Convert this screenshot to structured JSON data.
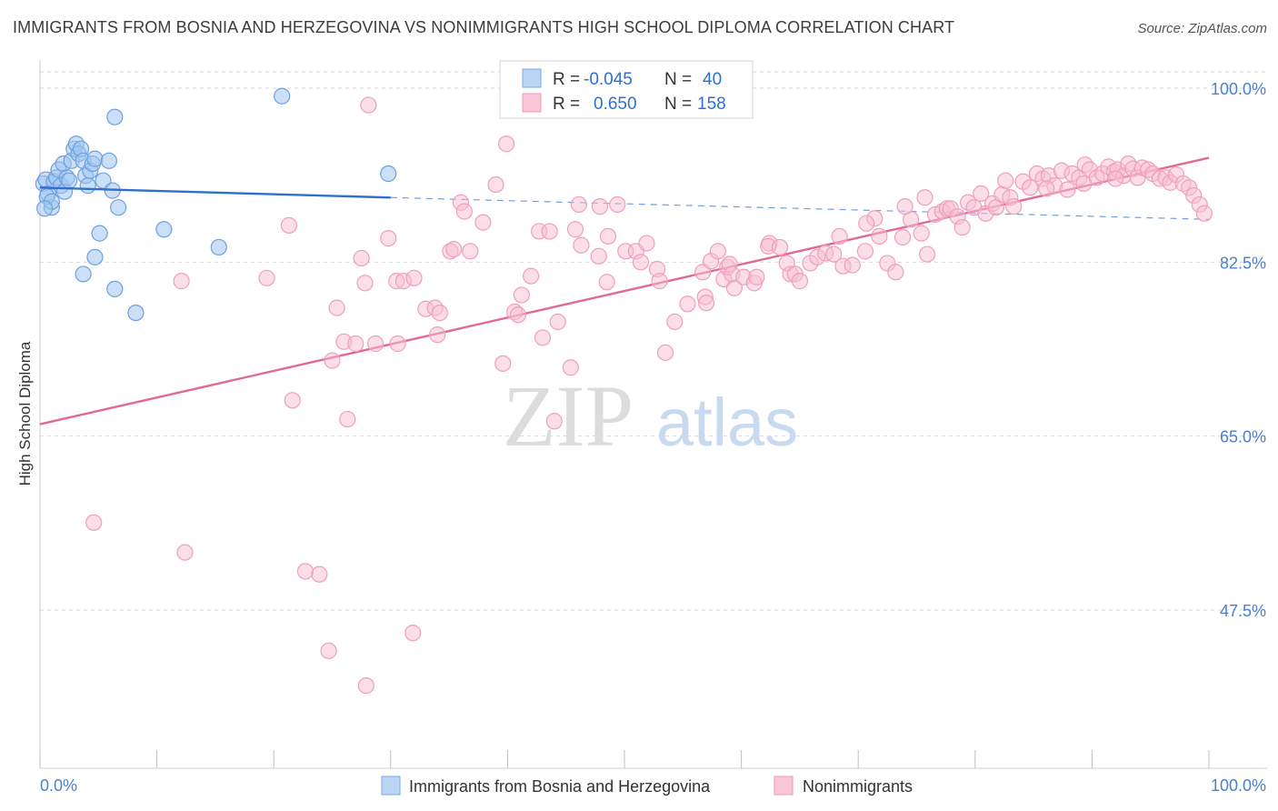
{
  "title": "IMMIGRANTS FROM BOSNIA AND HERZEGOVINA VS NONIMMIGRANTS HIGH SCHOOL DIPLOMA CORRELATION CHART",
  "source": "Source: ZipAtlas.com",
  "watermark": {
    "zip": "ZIP",
    "atlas": "atlas"
  },
  "chart_data": {
    "type": "scatter",
    "ylabel": "High School Diploma",
    "xlim": [
      0,
      100
    ],
    "ylim": [
      30,
      102
    ],
    "x_tick_labels": [
      "0.0%",
      "100.0%"
    ],
    "y_ticks": [
      {
        "value": 100.0,
        "label": "100.0%"
      },
      {
        "value": 82.5,
        "label": "82.5%"
      },
      {
        "value": 65.0,
        "label": "65.0%"
      },
      {
        "value": 47.5,
        "label": "47.5%"
      }
    ],
    "legend_stats": [
      {
        "r_label": "R =",
        "r_value": "-0.045",
        "n_label": "N =",
        "n_value": "40"
      },
      {
        "r_label": "R =",
        "r_value": "0.650",
        "n_label": "N =",
        "n_value": "158"
      }
    ],
    "series": [
      {
        "name": "Immigrants from Bosnia and Herzegovina",
        "color": "#8ab8ec",
        "line_color": "#2e6fcf",
        "trend": {
          "x0": 0,
          "y0": 90.0,
          "x1": 30,
          "y1": 89.0,
          "dash_to_x": 100,
          "dash_to_y": 86.8
        },
        "points": [
          [
            0.3,
            90.4
          ],
          [
            0.5,
            90.8
          ],
          [
            0.7,
            89.4
          ],
          [
            1.0,
            88.0
          ],
          [
            1.2,
            90.6
          ],
          [
            1.4,
            91.0
          ],
          [
            1.6,
            91.8
          ],
          [
            1.8,
            90.2
          ],
          [
            2.0,
            92.4
          ],
          [
            2.1,
            89.6
          ],
          [
            2.3,
            91.0
          ],
          [
            2.5,
            90.7
          ],
          [
            2.7,
            92.7
          ],
          [
            2.9,
            93.9
          ],
          [
            3.1,
            94.4
          ],
          [
            3.3,
            93.4
          ],
          [
            3.5,
            93.9
          ],
          [
            3.7,
            92.7
          ],
          [
            3.9,
            91.2
          ],
          [
            4.1,
            90.2
          ],
          [
            4.3,
            91.7
          ],
          [
            4.5,
            92.4
          ],
          [
            4.7,
            92.9
          ],
          [
            5.1,
            85.4
          ],
          [
            4.7,
            83.0
          ],
          [
            3.7,
            81.3
          ],
          [
            5.4,
            90.7
          ],
          [
            5.9,
            92.7
          ],
          [
            6.2,
            89.7
          ],
          [
            6.4,
            97.1
          ],
          [
            6.7,
            88.0
          ],
          [
            6.4,
            79.8
          ],
          [
            8.2,
            77.4
          ],
          [
            10.6,
            85.8
          ],
          [
            15.3,
            84.0
          ],
          [
            20.7,
            99.2
          ],
          [
            29.8,
            91.4
          ],
          [
            0.6,
            89.1
          ],
          [
            1.0,
            88.6
          ],
          [
            0.4,
            87.9
          ]
        ]
      },
      {
        "name": "Nonimmigrants",
        "color": "#f4a7bf",
        "line_color": "#e16a93",
        "trend": {
          "x0": 0,
          "y0": 66.2,
          "x1": 100,
          "y1": 93.0
        },
        "points": [
          [
            4.6,
            56.3
          ],
          [
            12.1,
            80.6
          ],
          [
            12.4,
            53.3
          ],
          [
            19.4,
            80.9
          ],
          [
            21.3,
            86.2
          ],
          [
            21.6,
            68.6
          ],
          [
            22.7,
            51.4
          ],
          [
            23.9,
            51.1
          ],
          [
            24.7,
            43.4
          ],
          [
            25.4,
            77.9
          ],
          [
            25.0,
            72.6
          ],
          [
            26.3,
            66.7
          ],
          [
            26.0,
            74.5
          ],
          [
            27.0,
            74.3
          ],
          [
            27.5,
            82.9
          ],
          [
            27.8,
            80.4
          ],
          [
            27.9,
            39.9
          ],
          [
            28.1,
            98.3
          ],
          [
            28.7,
            74.3
          ],
          [
            29.8,
            84.9
          ],
          [
            30.5,
            80.6
          ],
          [
            30.6,
            74.3
          ],
          [
            31.1,
            80.6
          ],
          [
            31.9,
            45.2
          ],
          [
            32.0,
            80.9
          ],
          [
            33.0,
            77.8
          ],
          [
            33.8,
            77.9
          ],
          [
            34.0,
            75.2
          ],
          [
            34.2,
            77.4
          ],
          [
            35.1,
            83.6
          ],
          [
            35.4,
            83.8
          ],
          [
            36.0,
            88.5
          ],
          [
            36.3,
            87.6
          ],
          [
            36.8,
            83.6
          ],
          [
            37.9,
            86.5
          ],
          [
            39.0,
            90.3
          ],
          [
            39.6,
            72.3
          ],
          [
            39.9,
            94.4
          ],
          [
            40.6,
            77.5
          ],
          [
            40.9,
            77.2
          ],
          [
            41.2,
            79.2
          ],
          [
            42.0,
            81.1
          ],
          [
            42.7,
            85.6
          ],
          [
            43.0,
            74.9
          ],
          [
            43.6,
            85.6
          ],
          [
            44.0,
            66.5
          ],
          [
            44.3,
            76.5
          ],
          [
            45.4,
            71.9
          ],
          [
            45.8,
            85.8
          ],
          [
            46.1,
            88.3
          ],
          [
            46.3,
            84.2
          ],
          [
            47.8,
            83.1
          ],
          [
            47.9,
            88.1
          ],
          [
            48.6,
            85.1
          ],
          [
            48.5,
            80.5
          ],
          [
            49.4,
            88.3
          ],
          [
            50.1,
            83.6
          ],
          [
            51.0,
            83.6
          ],
          [
            51.4,
            82.5
          ],
          [
            51.9,
            84.4
          ],
          [
            52.8,
            81.8
          ],
          [
            53.0,
            80.6
          ],
          [
            53.5,
            73.4
          ],
          [
            54.3,
            76.5
          ],
          [
            55.4,
            78.3
          ],
          [
            56.7,
            81.5
          ],
          [
            56.9,
            79.0
          ],
          [
            57.0,
            78.4
          ],
          [
            57.4,
            82.6
          ],
          [
            58.0,
            83.6
          ],
          [
            58.5,
            80.8
          ],
          [
            58.8,
            82.0
          ],
          [
            59.0,
            82.3
          ],
          [
            59.4,
            79.9
          ],
          [
            59.2,
            81.3
          ],
          [
            60.2,
            81.0
          ],
          [
            61.1,
            80.4
          ],
          [
            61.3,
            81.0
          ],
          [
            62.4,
            84.4
          ],
          [
            62.3,
            84.1
          ],
          [
            63.3,
            84.0
          ],
          [
            63.9,
            82.4
          ],
          [
            64.2,
            81.3
          ],
          [
            64.6,
            81.3
          ],
          [
            65.0,
            80.6
          ],
          [
            65.9,
            82.4
          ],
          [
            66.5,
            83.0
          ],
          [
            67.2,
            83.4
          ],
          [
            67.9,
            83.3
          ],
          [
            68.4,
            85.1
          ],
          [
            68.7,
            82.1
          ],
          [
            69.5,
            82.2
          ],
          [
            70.6,
            83.6
          ],
          [
            71.4,
            86.9
          ],
          [
            71.8,
            85.1
          ],
          [
            72.5,
            82.4
          ],
          [
            73.2,
            81.5
          ],
          [
            73.8,
            85.0
          ],
          [
            74.5,
            86.8
          ],
          [
            75.4,
            85.4
          ],
          [
            75.9,
            83.3
          ],
          [
            76.6,
            87.3
          ],
          [
            77.2,
            87.6
          ],
          [
            77.6,
            87.9
          ],
          [
            77.9,
            87.9
          ],
          [
            78.5,
            87.1
          ],
          [
            78.9,
            86.0
          ],
          [
            79.4,
            88.5
          ],
          [
            79.9,
            88.0
          ],
          [
            80.5,
            89.4
          ],
          [
            80.9,
            87.4
          ],
          [
            81.5,
            88.4
          ],
          [
            81.8,
            88.0
          ],
          [
            82.3,
            89.3
          ],
          [
            82.6,
            90.7
          ],
          [
            83.0,
            89.0
          ],
          [
            83.3,
            88.1
          ],
          [
            84.1,
            90.6
          ],
          [
            84.7,
            90.0
          ],
          [
            85.3,
            91.4
          ],
          [
            85.8,
            90.9
          ],
          [
            86.3,
            91.2
          ],
          [
            86.8,
            90.2
          ],
          [
            87.4,
            91.7
          ],
          [
            87.9,
            89.8
          ],
          [
            88.3,
            91.4
          ],
          [
            88.9,
            91.0
          ],
          [
            89.4,
            92.3
          ],
          [
            89.8,
            91.8
          ],
          [
            90.4,
            91.0
          ],
          [
            90.9,
            91.4
          ],
          [
            91.4,
            92.1
          ],
          [
            91.9,
            91.6
          ],
          [
            92.2,
            91.8
          ],
          [
            92.7,
            91.2
          ],
          [
            93.1,
            92.4
          ],
          [
            93.5,
            91.9
          ],
          [
            93.9,
            91.0
          ],
          [
            94.3,
            92.0
          ],
          [
            94.8,
            91.8
          ],
          [
            95.2,
            91.4
          ],
          [
            95.8,
            90.9
          ],
          [
            96.3,
            91.0
          ],
          [
            96.7,
            90.5
          ],
          [
            97.2,
            91.3
          ],
          [
            97.8,
            90.4
          ],
          [
            98.3,
            90.0
          ],
          [
            98.7,
            89.2
          ],
          [
            99.2,
            88.3
          ],
          [
            99.6,
            87.4
          ],
          [
            70.7,
            86.4
          ],
          [
            74.0,
            88.1
          ],
          [
            75.7,
            89.0
          ],
          [
            86.1,
            89.9
          ],
          [
            89.3,
            90.4
          ],
          [
            92.0,
            90.9
          ]
        ]
      }
    ],
    "legend_bottom": [
      "Immigrants from Bosnia and Herzegovina",
      "Nonimmigrants"
    ]
  }
}
